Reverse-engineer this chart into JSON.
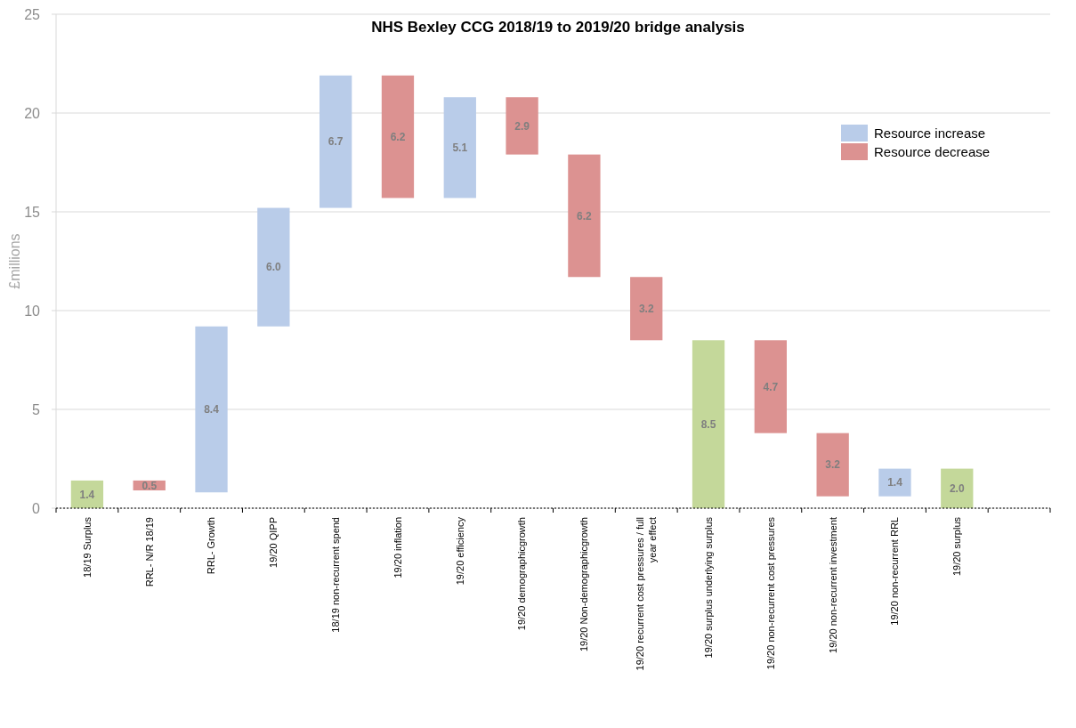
{
  "chart_data": {
    "type": "bar",
    "title": "NHS Bexley CCG 2018/19 to 2019/20 bridge analysis",
    "ylabel": "£millions",
    "categories": [
      "18/19 Surplus",
      "RRL- N/R 18/19",
      "RRL- Growth",
      "19/20 QIPP",
      "18/19 non-recurrent spend",
      "19/20 inflation",
      "19/20 efficiency",
      "19/20 demographicgrowth",
      "19/20 Non-demographicgrowth",
      "19/20 recurrent cost pressures / full year effect",
      "19/20 surplus underlying surplus",
      "19/20 non-recurrent cost pressures",
      "19/20 non-recurrent investment",
      "19/20 non-recurrent RRL",
      "19/20 surplus",
      null
    ],
    "series": [
      {
        "name": "Resource increase",
        "color": "#b9cce9",
        "values": [
          null,
          null,
          8.4,
          6.0,
          6.7,
          null,
          5.1,
          null,
          null,
          null,
          null,
          null,
          null,
          1.4,
          null,
          null
        ],
        "base": [
          null,
          null,
          0.8,
          9.2,
          15.2,
          null,
          15.7,
          null,
          null,
          null,
          null,
          null,
          null,
          0.6,
          null,
          null
        ],
        "value_labels": [
          null,
          null,
          "8.4",
          "6.0",
          "6.7",
          null,
          "5.1",
          null,
          null,
          null,
          null,
          null,
          null,
          "1.4",
          null,
          null
        ]
      },
      {
        "name": "Resource decrease",
        "color": "#dc9291",
        "values": [
          null,
          0.5,
          null,
          null,
          null,
          6.2,
          null,
          2.9,
          6.2,
          3.2,
          null,
          4.7,
          3.2,
          null,
          null,
          null
        ],
        "base": [
          null,
          0.9,
          null,
          null,
          null,
          15.7,
          null,
          17.9,
          11.7,
          8.5,
          null,
          3.8,
          0.6,
          null,
          null,
          null
        ],
        "value_labels": [
          null,
          "0.5",
          null,
          null,
          null,
          "6.2",
          null,
          "2.9",
          "6.2",
          "3.2",
          null,
          "4.7",
          "3.2",
          null,
          null,
          null
        ]
      },
      {
        "color": "#c4d89a",
        "values": [
          1.4,
          null,
          null,
          null,
          null,
          null,
          null,
          null,
          null,
          null,
          8.5,
          null,
          null,
          null,
          2.0,
          null
        ],
        "value_labels": [
          "1.4",
          null,
          null,
          null,
          null,
          null,
          null,
          null,
          null,
          null,
          "8.5",
          null,
          null,
          null,
          "2.0",
          null
        ]
      }
    ],
    "ylim": [
      0,
      25
    ],
    "yticks": [
      0,
      5,
      10,
      15,
      20,
      25
    ],
    "grid": "y",
    "legend": "top right"
  }
}
